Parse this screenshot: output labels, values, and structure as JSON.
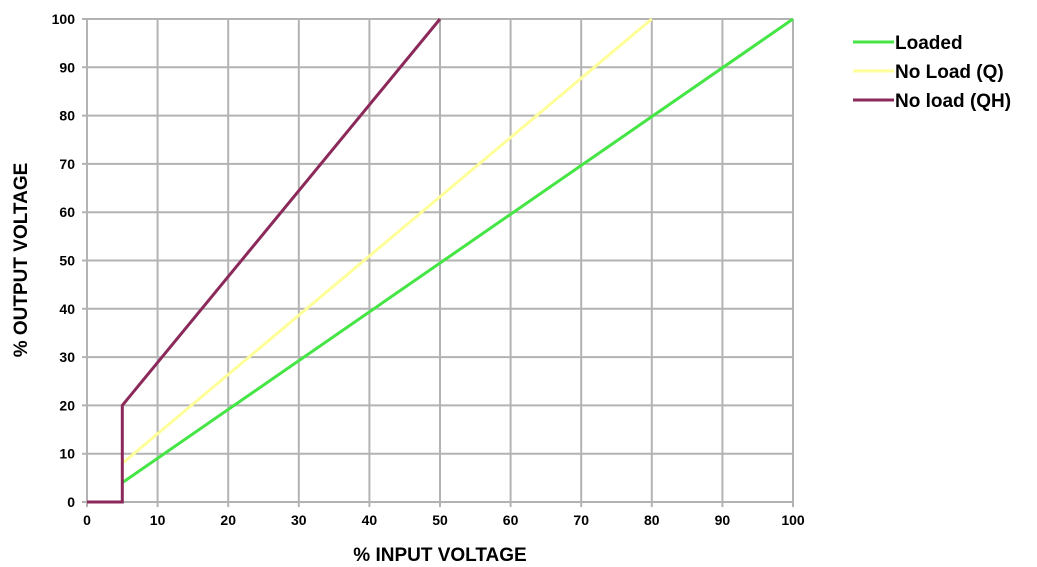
{
  "chart_data": {
    "type": "line",
    "title": "",
    "xlabel": "% INPUT VOLTAGE",
    "ylabel": "% OUTPUT VOLTAGE",
    "xlim": [
      0,
      100
    ],
    "ylim": [
      0,
      100
    ],
    "xticks": [
      "0",
      "10",
      "20",
      "30",
      "40",
      "50",
      "60",
      "70",
      "80",
      "90",
      "100"
    ],
    "yticks": [
      "0",
      "10",
      "20",
      "30",
      "40",
      "50",
      "60",
      "70",
      "80",
      "90",
      "100"
    ],
    "grid": true,
    "legend_position": "right",
    "series": [
      {
        "name": "Loaded",
        "color": "#44e544",
        "points": [
          [
            5,
            4
          ],
          [
            100,
            100
          ]
        ]
      },
      {
        "name": "No Load (Q)",
        "color": "#ffff99",
        "points": [
          [
            5,
            8
          ],
          [
            80,
            100
          ]
        ]
      },
      {
        "name": "No load (QH)",
        "color": "#8b2a5a",
        "points": [
          [
            0,
            0
          ],
          [
            5,
            0
          ],
          [
            5,
            20
          ],
          [
            50,
            100
          ]
        ]
      }
    ]
  }
}
